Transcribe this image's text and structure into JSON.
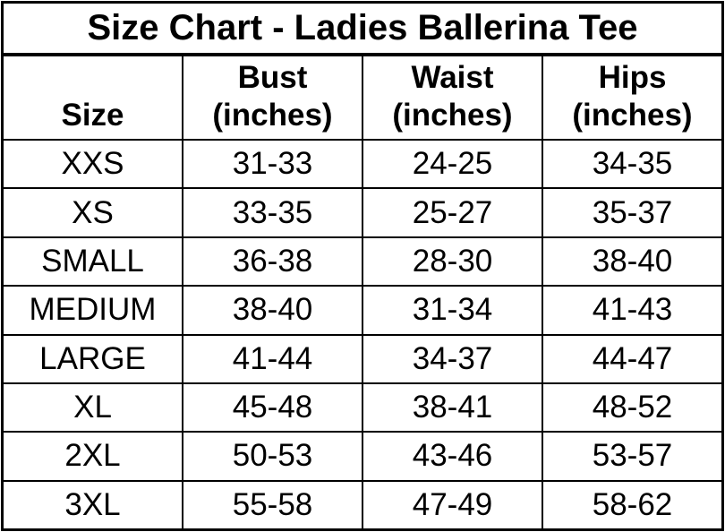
{
  "title": "Size Chart - Ladies Ballerina Tee",
  "colors": {
    "background": "#ffffff",
    "text": "#000000",
    "grid_lines": "#000000"
  },
  "header": {
    "columns": [
      {
        "label": "Size",
        "unit": ""
      },
      {
        "label": "Bust",
        "unit": "(inches)"
      },
      {
        "label": "Waist",
        "unit": "(inches)"
      },
      {
        "label": "Hips",
        "unit": "(inches)"
      }
    ]
  },
  "chart_data": {
    "type": "table",
    "title": "Size Chart - Ladies Ballerina Tee",
    "columns": [
      "Size",
      "Bust (inches)",
      "Waist (inches)",
      "Hips (inches)"
    ],
    "rows": [
      [
        "XXS",
        "31-33",
        "24-25",
        "34-35"
      ],
      [
        "XS",
        "33-35",
        "25-27",
        "35-37"
      ],
      [
        "SMALL",
        "36-38",
        "28-30",
        "38-40"
      ],
      [
        "MEDIUM",
        "38-40",
        "31-34",
        "41-43"
      ],
      [
        "LARGE",
        "41-44",
        "34-37",
        "44-47"
      ],
      [
        "XL",
        "45-48",
        "38-41",
        "48-52"
      ],
      [
        "2XL",
        "50-53",
        "43-46",
        "53-57"
      ],
      [
        "3XL",
        "55-58",
        "47-49",
        "58-62"
      ]
    ]
  }
}
